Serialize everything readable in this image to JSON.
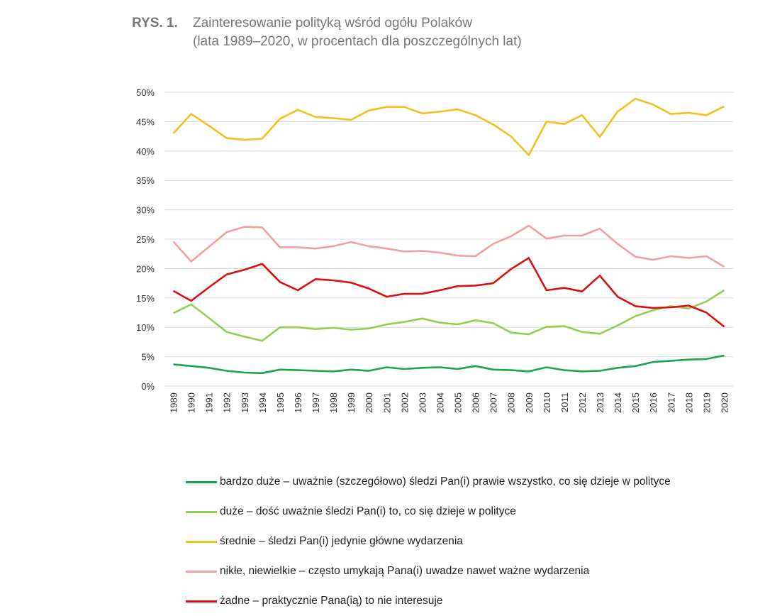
{
  "figure": {
    "label": "RYS. 1.",
    "title_line1": "Zainteresowanie polityką wśród ogółu Polaków",
    "title_line2": "(lata 1989–2020,  w procentach dla poszczególnych lat)"
  },
  "chart_data": {
    "type": "line",
    "x": [
      "1989",
      "1990",
      "1991",
      "1992",
      "1993",
      "1994",
      "1995",
      "1996",
      "1997",
      "1998",
      "1999",
      "2000",
      "2001",
      "2002",
      "2003",
      "2004",
      "2005",
      "2006",
      "2007",
      "2008",
      "2009",
      "2010",
      "2011",
      "2012",
      "2013",
      "2014",
      "2015",
      "2016",
      "2017",
      "2018",
      "2019",
      "2020"
    ],
    "ylim": [
      0,
      50
    ],
    "yticks": [
      "0%",
      "5%",
      "10%",
      "15%",
      "20%",
      "25%",
      "30%",
      "35%",
      "40%",
      "45%",
      "50%"
    ],
    "grid": true,
    "legend_position": "bottom",
    "series": [
      {
        "name": "bardzo duże – uważnie (szczegółowo) śledzi Pan(i)  prawie wszystko, co się dzieje w polityce",
        "color": "#1aa64a",
        "values": [
          3.7,
          3.4,
          3.1,
          2.6,
          2.3,
          2.2,
          2.8,
          2.7,
          2.6,
          2.5,
          2.8,
          2.6,
          3.2,
          2.9,
          3.1,
          3.2,
          2.9,
          3.4,
          2.8,
          2.7,
          2.5,
          3.2,
          2.7,
          2.5,
          2.6,
          3.1,
          3.4,
          4.1,
          4.3,
          4.5,
          4.6,
          5.2
        ]
      },
      {
        "name": "duże – dość uważnie śledzi Pan(i) to, co się dzieje w polityce",
        "color": "#92d050",
        "values": [
          12.4,
          13.9,
          11.6,
          9.2,
          8.4,
          7.7,
          10.0,
          10.0,
          9.7,
          9.9,
          9.6,
          9.8,
          10.5,
          10.9,
          11.5,
          10.8,
          10.5,
          11.2,
          10.7,
          9.1,
          8.8,
          10.1,
          10.2,
          9.2,
          8.9,
          10.3,
          11.9,
          12.9,
          13.6,
          13.2,
          14.4,
          16.3
        ]
      },
      {
        "name": "średnie – śledzi Pan(i) jedynie główne wydarzenia",
        "color": "#f5c01f",
        "values": [
          43.0,
          46.3,
          44.3,
          42.2,
          41.9,
          42.1,
          45.5,
          47.0,
          45.8,
          45.6,
          45.3,
          46.9,
          47.5,
          47.5,
          46.4,
          46.7,
          47.1,
          46.1,
          44.5,
          42.5,
          39.3,
          45.0,
          44.6,
          46.1,
          42.4,
          46.7,
          48.9,
          47.9,
          46.3,
          46.5,
          46.1,
          47.6
        ]
      },
      {
        "name": "nikłe, niewielkie – często umykają Pana(i) uwadze nawet ważne wydarzenia",
        "color": "#f4a0a0",
        "values": [
          24.6,
          21.2,
          23.7,
          26.2,
          27.1,
          27.0,
          23.6,
          23.6,
          23.4,
          23.8,
          24.5,
          23.8,
          23.4,
          22.9,
          23.0,
          22.7,
          22.2,
          22.1,
          24.2,
          25.5,
          27.3,
          25.1,
          25.6,
          25.6,
          26.8,
          24.2,
          22.0,
          21.5,
          22.1,
          21.8,
          22.1,
          20.3
        ]
      },
      {
        "name": "żadne – praktycznie Pana(ią) to nie interesuje",
        "color": "#dc0f0f",
        "values": [
          16.2,
          14.5,
          16.8,
          19.0,
          19.8,
          20.8,
          17.7,
          16.3,
          18.2,
          18.0,
          17.6,
          16.6,
          15.2,
          15.7,
          15.7,
          16.3,
          17.0,
          17.1,
          17.5,
          19.9,
          21.8,
          16.3,
          16.7,
          16.1,
          18.8,
          15.2,
          13.6,
          13.3,
          13.4,
          13.7,
          12.5,
          10.1
        ]
      }
    ]
  }
}
